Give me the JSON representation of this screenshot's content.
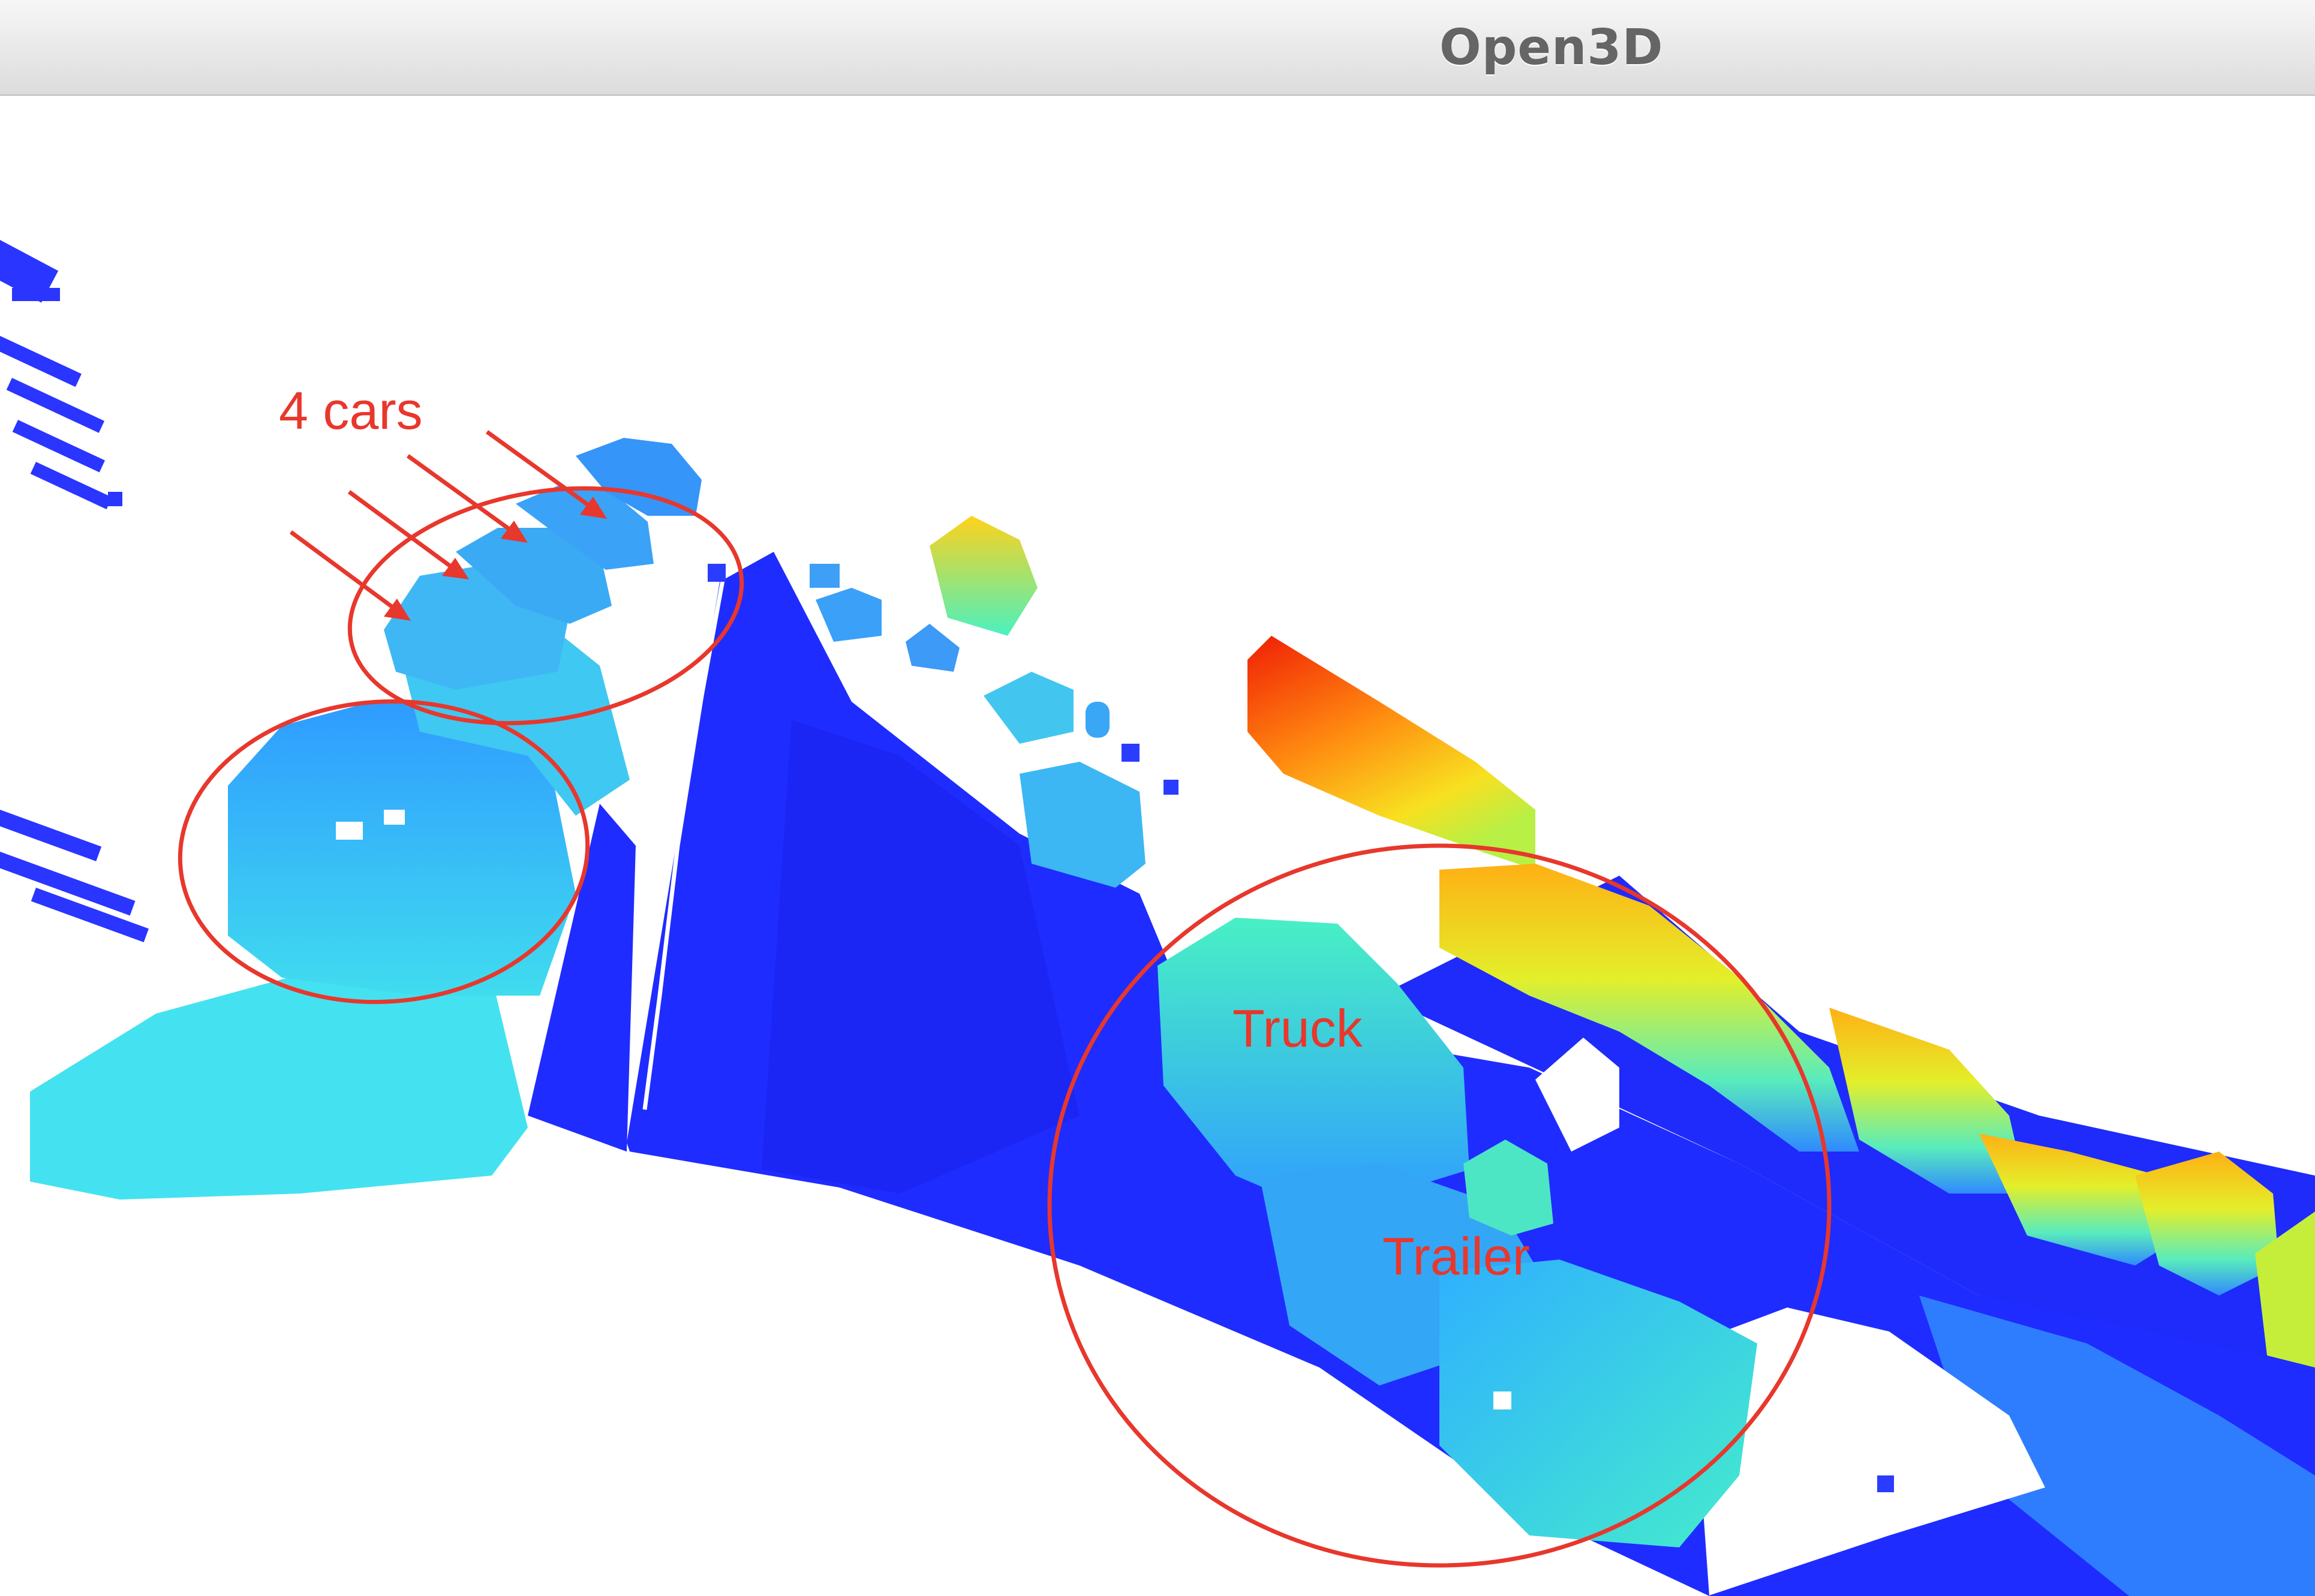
{
  "window": {
    "title": "Open3D"
  },
  "annotations": {
    "cars_label": "4 cars",
    "truck_label": "Truck",
    "trailer_label": "Trailer",
    "color": "#e8372c"
  },
  "colormap": [
    "#1d2dff",
    "#2f80ff",
    "#3ed6f4",
    "#4bf1c0",
    "#b9f043",
    "#ffd21a",
    "#ff7a0e",
    "#f01e05"
  ],
  "icons": {
    "arrow": "red-arrow-icon",
    "circle": "red-circle-annotation"
  }
}
